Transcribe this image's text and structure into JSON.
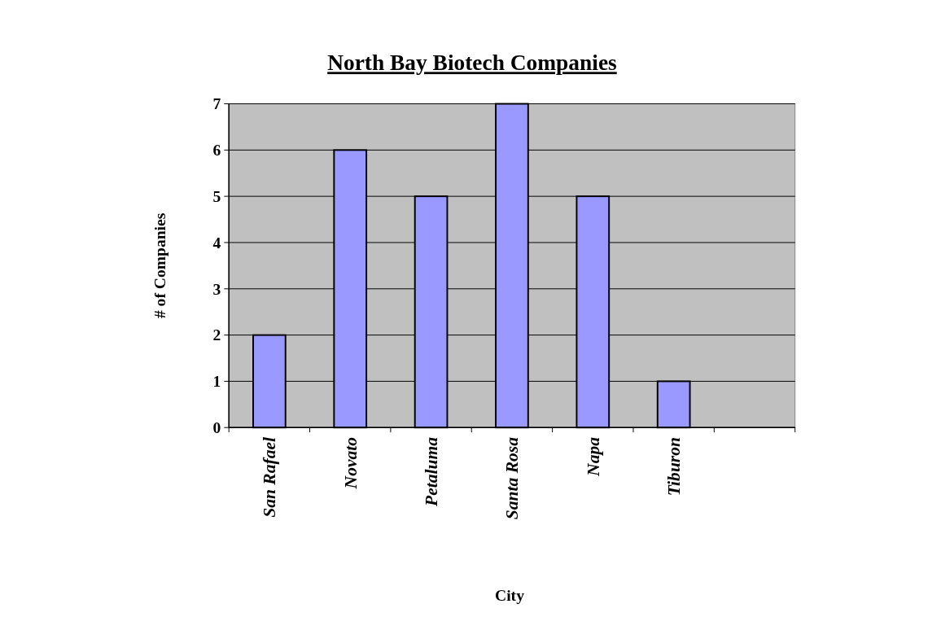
{
  "chart_data": {
    "type": "bar",
    "title": "North Bay Biotech Companies",
    "xlabel": "City",
    "ylabel": "# of Companies",
    "categories": [
      "San Rafael",
      "Novato",
      "Petaluma",
      "Santa Rosa",
      "Napa",
      "Tiburon",
      null
    ],
    "values": [
      2,
      6,
      5,
      7,
      5,
      1,
      null
    ],
    "color": "#9999ff",
    "ylim": [
      0,
      7
    ],
    "yticks": [
      0,
      1,
      2,
      3,
      4,
      5,
      6,
      7
    ],
    "grid": "y"
  }
}
